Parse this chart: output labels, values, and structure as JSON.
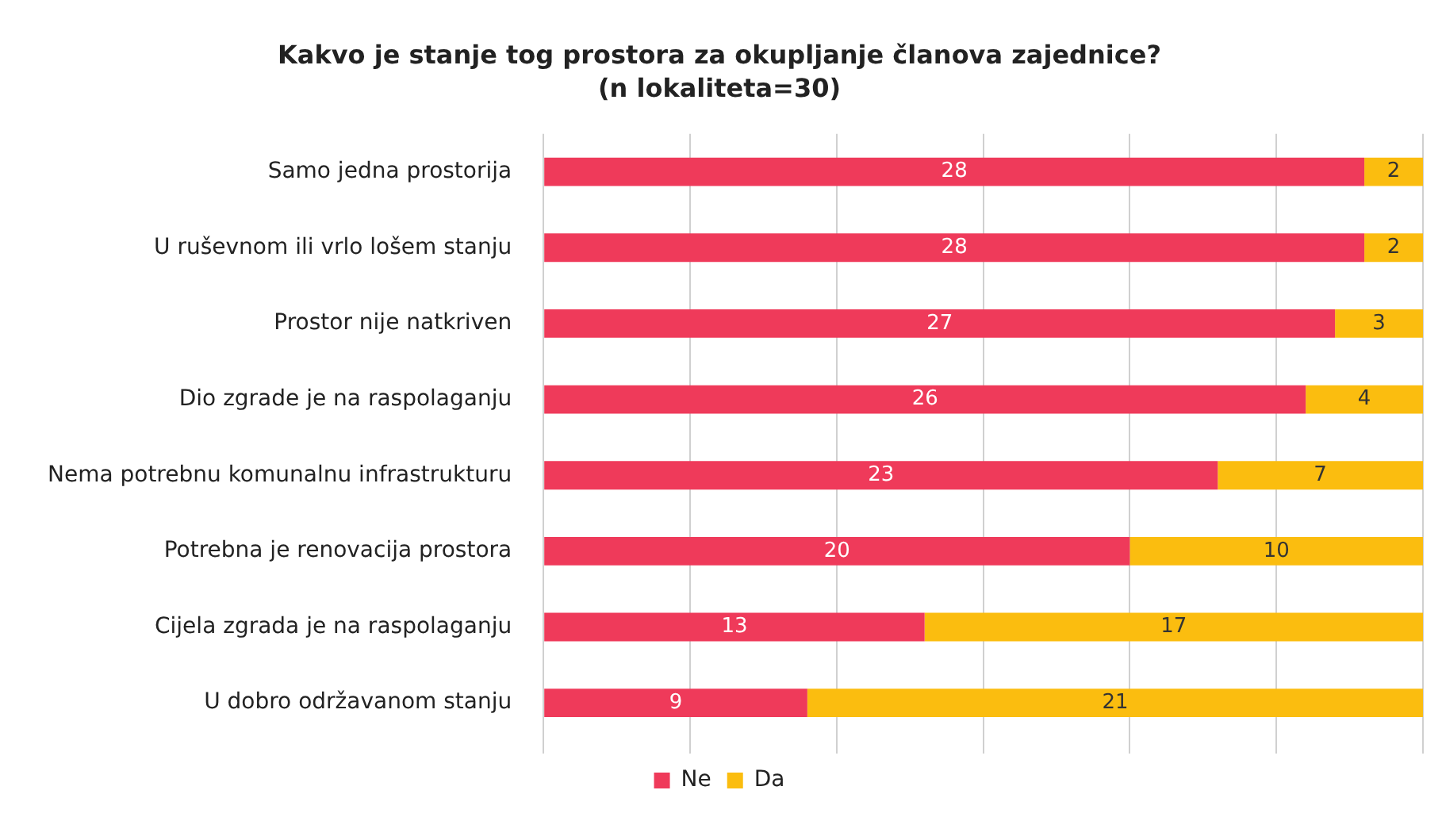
{
  "chart_data": {
    "type": "bar",
    "orientation": "horizontal",
    "stacked": true,
    "title": "Kakvo je stanje tog prostora za okupljanje članova zajednice?",
    "subtitle": "(n lokaliteta=30)",
    "categories": [
      "Samo jedna prostorija",
      "U ruševnom ili vrlo lošem stanju",
      "Prostor nije natkriven",
      "Dio zgrade je na raspolaganju",
      "Nema potrebnu komunalnu infrastrukturu",
      "Potrebna je renovacija prostora",
      "Cijela zgrada je na raspolaganju",
      "U dobro održavanom stanju"
    ],
    "series": [
      {
        "name": "Ne",
        "color": "#ef3a5a",
        "values": [
          28,
          28,
          27,
          26,
          23,
          20,
          13,
          9
        ]
      },
      {
        "name": "Da",
        "color": "#fbbd0f",
        "values": [
          2,
          2,
          3,
          4,
          7,
          10,
          17,
          21
        ]
      }
    ],
    "xlim": [
      0,
      30
    ],
    "xticks": [
      {
        "value": 0,
        "label": null
      },
      {
        "value": 5,
        "label": null
      },
      {
        "value": 10,
        "label": null
      },
      {
        "value": 15,
        "label": null
      },
      {
        "value": 20,
        "label": null
      },
      {
        "value": 25,
        "label": null
      },
      {
        "value": 30,
        "label": null
      }
    ],
    "tick_labels": "y",
    "grid": "x",
    "legend": "bottom",
    "data_labels": true
  }
}
